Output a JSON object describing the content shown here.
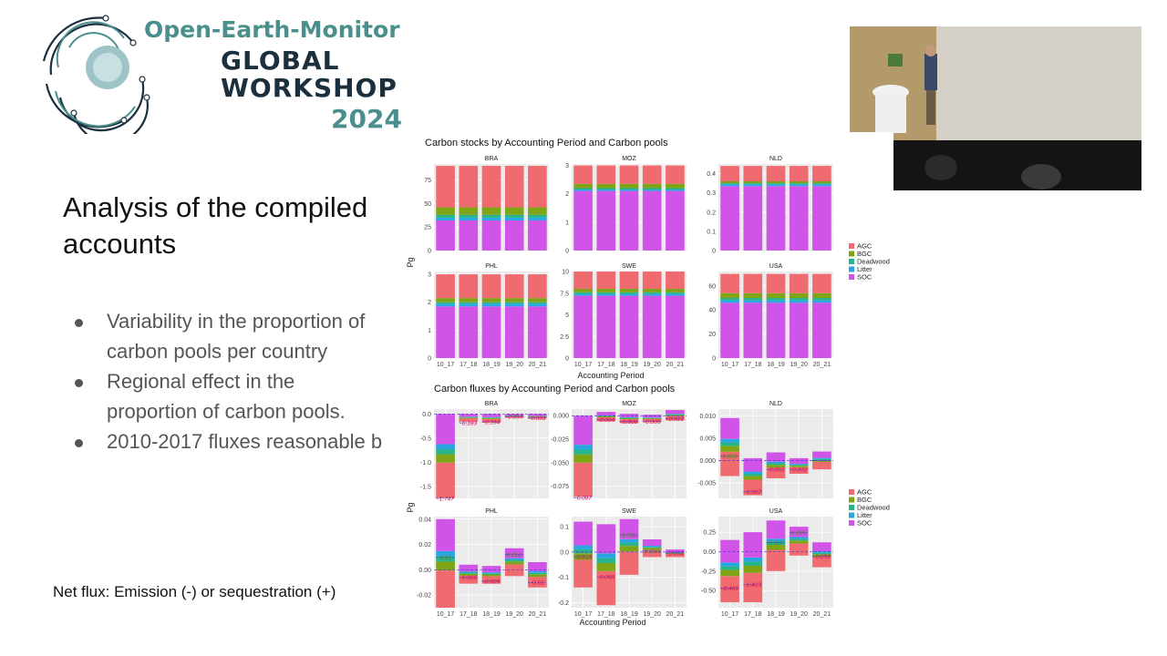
{
  "header": {
    "brand_line1": "Open-Earth-Monitor",
    "brand_line2": "GLOBAL",
    "brand_line3": "WORKSHOP",
    "brand_year": "2024"
  },
  "slide": {
    "title": "Analysis of the compiled accounts",
    "bullets": [
      "Variability in the proportion of carbon pools per country",
      "Regional effect in the proportion of carbon pools.",
      "2010-2017 fluxes reasonable b"
    ],
    "footnote": "Net flux: Emission (-) or sequestration (+)"
  },
  "video": {
    "description_icon": "speaker-video-feed"
  },
  "colors": {
    "AGC": "#f06b6f",
    "BGC": "#7fa517",
    "Deadwood": "#27b48a",
    "Litter": "#29a6e0",
    "SOC": "#d154e8"
  },
  "chart_data": [
    {
      "type": "bar",
      "stacked": true,
      "title": "Carbon stocks by Accounting Period and Carbon pools",
      "xlabel": "Accounting Period",
      "ylabel": "Pg",
      "categories": [
        "10_17",
        "17_18",
        "18_19",
        "19_20",
        "20_21"
      ],
      "legend": [
        "AGC",
        "BGC",
        "Deadwood",
        "Litter",
        "SOC"
      ],
      "legend_position": "right",
      "facets": [
        {
          "name": "BRA",
          "ylim": [
            0,
            92
          ],
          "yticks": [
            0,
            25,
            50,
            75
          ],
          "stack": {
            "SOC": 32,
            "Litter": 3,
            "Deadwood": 3,
            "BGC": 8,
            "AGC": 44
          }
        },
        {
          "name": "MOZ",
          "ylim": [
            0,
            3.05
          ],
          "yticks": [
            0,
            1,
            2,
            3
          ],
          "stack": {
            "SOC": 2.1,
            "Litter": 0.05,
            "Deadwood": 0.05,
            "BGC": 0.15,
            "AGC": 0.65
          }
        },
        {
          "name": "NLD",
          "ylim": [
            0,
            0.45
          ],
          "yticks": [
            0,
            0.1,
            0.2,
            0.3,
            0.4
          ],
          "stack": {
            "SOC": 0.335,
            "Litter": 0.01,
            "Deadwood": 0.005,
            "BGC": 0.01,
            "AGC": 0.08
          }
        },
        {
          "name": "PHL",
          "ylim": [
            0,
            3.1
          ],
          "yticks": [
            0,
            1,
            2,
            3
          ],
          "stack": {
            "SOC": 1.85,
            "Litter": 0.1,
            "Deadwood": 0.05,
            "BGC": 0.15,
            "AGC": 0.85
          }
        },
        {
          "name": "SWE",
          "ylim": [
            0,
            10
          ],
          "yticks": [
            0,
            2.5,
            5,
            7.5,
            10
          ],
          "stack": {
            "SOC": 7.2,
            "Litter": 0.2,
            "Deadwood": 0.2,
            "BGC": 0.4,
            "AGC": 2.0
          }
        },
        {
          "name": "USA",
          "ylim": [
            0,
            72
          ],
          "yticks": [
            0,
            20,
            40,
            60
          ],
          "stack": {
            "SOC": 46,
            "Litter": 2,
            "Deadwood": 2,
            "BGC": 4,
            "AGC": 16
          }
        }
      ]
    },
    {
      "type": "bar",
      "stacked": true,
      "title": "Carbon fluxes by Accounting Period and Carbon pools",
      "xlabel": "Accounting Period",
      "ylabel": "Pg",
      "categories": [
        "10_17",
        "17_18",
        "18_19",
        "19_20",
        "20_21"
      ],
      "legend": [
        "AGC",
        "BGC",
        "Deadwood",
        "Litter",
        "SOC"
      ],
      "legend_position": "right",
      "facets": [
        {
          "name": "BRA",
          "ylim": [
            -1.75,
            0.1
          ],
          "yticks": [
            0.0,
            -0.5,
            -1.0,
            -1.5
          ],
          "ytick_labels": [
            "0.0",
            "-0.5",
            "-1.0",
            "-1.5"
          ],
          "net": [
            -1.747,
            -0.183,
            -0.164,
            -0.054,
            -0.081
          ],
          "net_labels": [
            "-1.747",
            "-0.183",
            "-0.164",
            "-0.054",
            "-0.081"
          ],
          "bars": [
            {
              "min": -1.74,
              "max": 0
            },
            {
              "min": -0.16,
              "max": 0
            },
            {
              "min": -0.18,
              "max": 0
            },
            {
              "min": -0.08,
              "max": 0
            },
            {
              "min": -0.1,
              "max": 0
            }
          ]
        },
        {
          "name": "MOZ",
          "ylim": [
            -0.088,
            0.007
          ],
          "yticks": [
            0.0,
            -0.025,
            -0.05,
            -0.075
          ],
          "ytick_labels": [
            "0.000",
            "-0.025",
            "-0.050",
            "-0.075"
          ],
          "net": [
            -0.087,
            -0.004,
            -0.006,
            -0.006,
            -0.003
          ],
          "net_labels": [
            "-0.087",
            "-0.004",
            "-0.006",
            "-0.006",
            "-0.003"
          ],
          "bars": [
            {
              "min": -0.086,
              "max": 0
            },
            {
              "min": -0.006,
              "max": 0.004
            },
            {
              "min": -0.008,
              "max": 0.002
            },
            {
              "min": -0.007,
              "max": 0.001
            },
            {
              "min": -0.005,
              "max": 0.006
            }
          ]
        },
        {
          "name": "NLD",
          "ylim": [
            -0.0085,
            0.0115
          ],
          "yticks": [
            0.01,
            0.005,
            0.0,
            -0.005
          ],
          "ytick_labels": [
            "0.010",
            "0.005",
            "0.000",
            "-0.005"
          ],
          "net": [
            0.001,
            -0.007,
            -0.002,
            -0.002,
            0.0
          ],
          "net_labels": [
            "0.001",
            "-0.007",
            "-0.002",
            "-0.002",
            ""
          ],
          "bars": [
            {
              "min": -0.0035,
              "max": 0.0095
            },
            {
              "min": -0.0078,
              "max": 0.0005
            },
            {
              "min": -0.004,
              "max": 0.0018
            },
            {
              "min": -0.003,
              "max": 0.0005
            },
            {
              "min": -0.002,
              "max": 0.002
            }
          ]
        },
        {
          "name": "PHL",
          "ylim": [
            -0.03,
            0.042
          ],
          "yticks": [
            0.04,
            0.02,
            0.0,
            -0.02
          ],
          "ytick_labels": [
            "0.04",
            "0.02",
            "0.00",
            "-0.02"
          ],
          "net": [
            0.01,
            -0.006,
            -0.009,
            0.012,
            -0.01
          ],
          "net_labels": [
            "0.01",
            "-0.006",
            "-0.009",
            "0.012",
            "-0.01"
          ],
          "bars": [
            {
              "min": -0.03,
              "max": 0.04
            },
            {
              "min": -0.011,
              "max": 0.004
            },
            {
              "min": -0.011,
              "max": 0.003
            },
            {
              "min": -0.005,
              "max": 0.017
            },
            {
              "min": -0.014,
              "max": 0.006
            }
          ]
        },
        {
          "name": "SWE",
          "ylim": [
            -0.22,
            0.14
          ],
          "yticks": [
            0.1,
            0.0,
            -0.1,
            -0.2
          ],
          "ytick_labels": [
            "0.1",
            "0.0",
            "-0.1",
            "-0.2"
          ],
          "net": [
            -0.018,
            -0.098,
            0.068,
            0.005,
            -0.004
          ],
          "net_labels": [
            "-0.018",
            "-0.098",
            "0.068",
            "0.005",
            "-0.004"
          ],
          "bars": [
            {
              "min": -0.14,
              "max": 0.12
            },
            {
              "min": -0.21,
              "max": 0.11
            },
            {
              "min": -0.09,
              "max": 0.13
            },
            {
              "min": -0.02,
              "max": 0.05
            },
            {
              "min": -0.02,
              "max": 0.01
            }
          ]
        },
        {
          "name": "USA",
          "ylim": [
            -0.72,
            0.45
          ],
          "yticks": [
            0.25,
            0.0,
            -0.25,
            -0.5
          ],
          "ytick_labels": [
            "0.25",
            "0.00",
            "-0.25",
            "-0.50"
          ],
          "net": [
            -0.469,
            -0.423,
            0.117,
            0.245,
            -0.059
          ],
          "net_labels": [
            "-0.469",
            "-0.423",
            "0.117",
            "0.245",
            "-0.059"
          ],
          "bars": [
            {
              "min": -0.65,
              "max": 0.15
            },
            {
              "min": -0.65,
              "max": 0.25
            },
            {
              "min": -0.25,
              "max": 0.4
            },
            {
              "min": -0.05,
              "max": 0.32
            },
            {
              "min": -0.2,
              "max": 0.12
            }
          ]
        }
      ]
    }
  ]
}
